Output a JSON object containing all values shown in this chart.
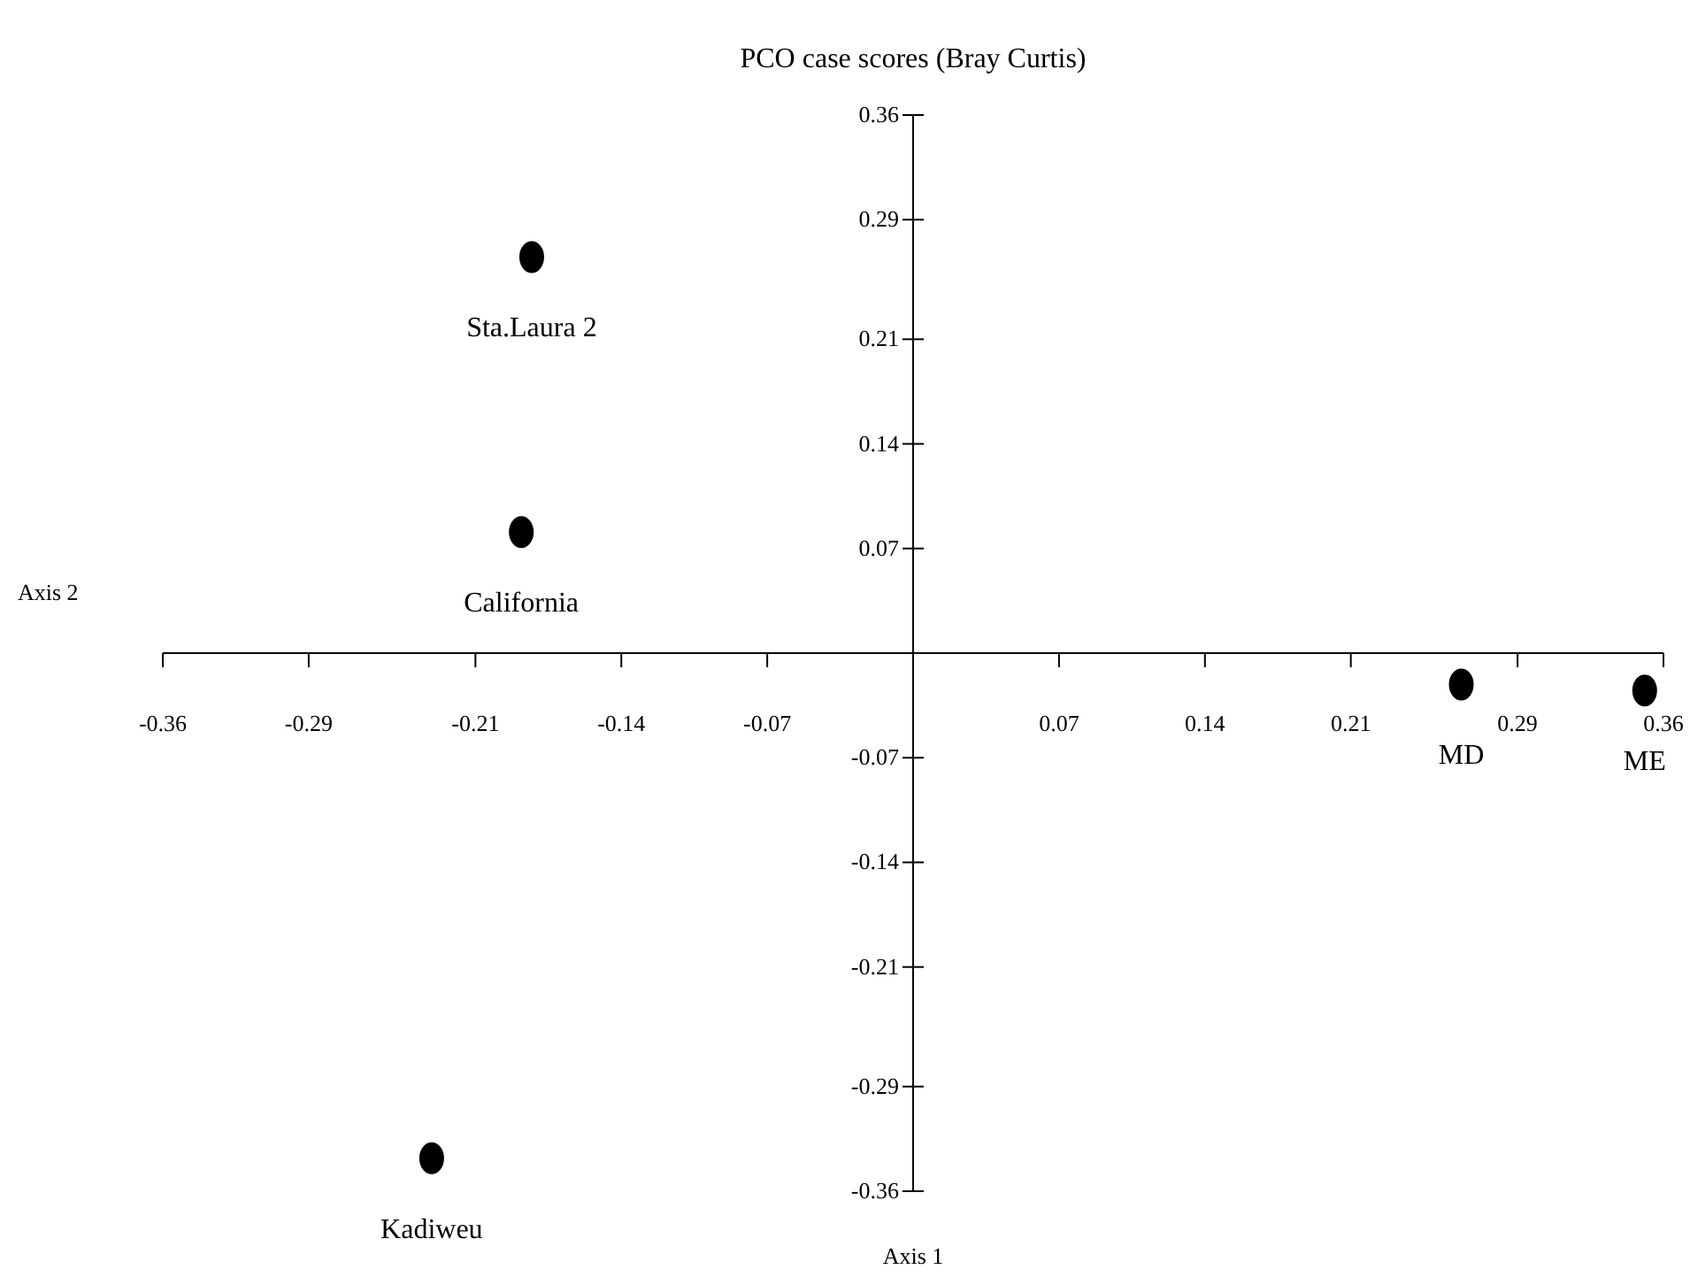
{
  "chart_data": {
    "type": "scatter",
    "title": "PCO case scores (Bray Curtis)",
    "xlabel": "Axis 1",
    "ylabel": "Axis 2",
    "x": [
      -0.183,
      -0.188,
      -0.231,
      0.263,
      0.351
    ],
    "series": [
      {
        "color": "#000000",
        "values": [
          0.265,
          0.081,
          -0.338,
          -0.021,
          -0.025
        ]
      }
    ],
    "xlim": [
      -0.36,
      0.36
    ],
    "ylim": [
      -0.36,
      0.36
    ],
    "xticks": [
      -0.36,
      -0.29,
      -0.21,
      -0.14,
      -0.07,
      0.07,
      0.14,
      0.21,
      0.29,
      0.36
    ],
    "yticks": [
      -0.36,
      -0.29,
      -0.21,
      -0.14,
      -0.07,
      0.07,
      0.14,
      0.21,
      0.29,
      0.36
    ],
    "annotations": [
      {
        "text": "Sta.Laura 2",
        "x": -0.183,
        "y": 0.265
      },
      {
        "text": "California",
        "x": -0.188,
        "y": 0.081
      },
      {
        "text": "Kadiweu",
        "x": -0.231,
        "y": -0.338
      },
      {
        "text": "MD",
        "x": 0.263,
        "y": -0.021
      },
      {
        "text": "ME",
        "x": 0.351,
        "y": -0.025
      }
    ],
    "grid": false,
    "legend": false,
    "marker": "circle"
  }
}
